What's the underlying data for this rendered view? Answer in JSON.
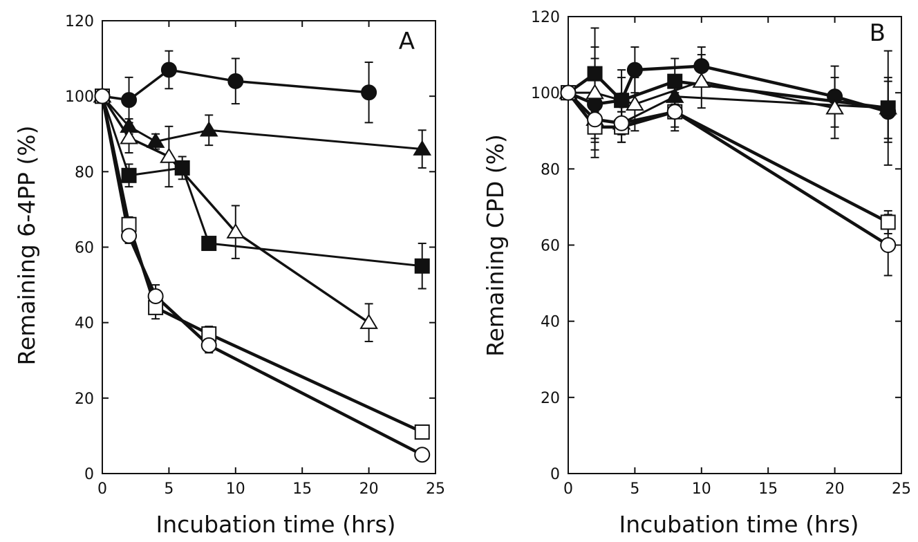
{
  "chart_data": [
    {
      "type": "line",
      "panel_label": "A",
      "xlabel": "Incubation time (hrs)",
      "ylabel": "Remaining 6-4PP (%)",
      "xlim": [
        0,
        25
      ],
      "ylim": [
        0,
        120
      ],
      "xticks": [
        "0",
        "5",
        "10",
        "15",
        "20",
        "25"
      ],
      "yticks": [
        "0",
        "20",
        "40",
        "60",
        "80",
        "100",
        "120"
      ],
      "grid": false,
      "legend": "none",
      "series": [
        {
          "marker": "filled-circle",
          "x": [
            0,
            2,
            5,
            10,
            20
          ],
          "y": [
            100,
            99,
            107,
            104,
            101
          ],
          "err": [
            0,
            6,
            5,
            6,
            8
          ]
        },
        {
          "marker": "filled-triangle",
          "x": [
            0,
            2,
            4,
            8,
            24
          ],
          "y": [
            100,
            92,
            88,
            91,
            86
          ],
          "err": [
            0,
            2,
            2,
            4,
            5
          ]
        },
        {
          "marker": "open-triangle",
          "x": [
            0,
            2,
            5,
            10,
            20
          ],
          "y": [
            100,
            89,
            84,
            64,
            40
          ],
          "err": [
            0,
            4,
            8,
            7,
            5
          ]
        },
        {
          "marker": "filled-square",
          "x": [
            0,
            2,
            6,
            8,
            24
          ],
          "y": [
            100,
            79,
            81,
            61,
            55
          ],
          "err": [
            0,
            3,
            3,
            0,
            6
          ]
        },
        {
          "marker": "open-square",
          "x": [
            0,
            2,
            4,
            8,
            24
          ],
          "y": [
            100,
            66,
            44,
            37,
            11
          ],
          "err": [
            0,
            2,
            3,
            2,
            0
          ]
        },
        {
          "marker": "open-circle",
          "x": [
            0,
            2,
            4,
            8,
            24
          ],
          "y": [
            100,
            63,
            47,
            34,
            5
          ],
          "err": [
            0,
            2,
            3,
            2,
            0
          ]
        }
      ]
    },
    {
      "type": "line",
      "panel_label": "B",
      "xlabel": "Incubation time (hrs)",
      "ylabel": "Remaining CPD (%)",
      "xlim": [
        0,
        25
      ],
      "ylim": [
        0,
        120
      ],
      "xticks": [
        "0",
        "5",
        "10",
        "15",
        "20",
        "25"
      ],
      "yticks": [
        "0",
        "20",
        "40",
        "60",
        "80",
        "100",
        "120"
      ],
      "grid": false,
      "legend": "none",
      "series": [
        {
          "marker": "filled-circle",
          "x": [
            0,
            2,
            4,
            5,
            10,
            20,
            24
          ],
          "y": [
            100,
            97,
            98,
            106,
            107,
            99,
            95
          ],
          "err": [
            0,
            12,
            8,
            6,
            5,
            8,
            8
          ]
        },
        {
          "marker": "filled-square",
          "x": [
            0,
            2,
            4,
            8,
            24
          ],
          "y": [
            100,
            105,
            98,
            103,
            96
          ],
          "err": [
            0,
            7,
            6,
            6,
            8
          ]
        },
        {
          "marker": "open-triangle",
          "x": [
            0,
            2,
            5,
            10,
            20
          ],
          "y": [
            100,
            100,
            97,
            103,
            96
          ],
          "err": [
            0,
            17,
            7,
            7,
            8
          ]
        },
        {
          "marker": "filled-triangle",
          "x": [
            0,
            2,
            4,
            8,
            24
          ],
          "y": [
            100,
            93,
            92,
            99,
            96
          ],
          "err": [
            0,
            5,
            5,
            4,
            15
          ]
        },
        {
          "marker": "open-square",
          "x": [
            0,
            2,
            4,
            8,
            24
          ],
          "y": [
            100,
            91,
            91,
            95,
            66
          ],
          "err": [
            0,
            4,
            4,
            5,
            3
          ]
        },
        {
          "marker": "open-circle",
          "x": [
            0,
            2,
            4,
            8,
            24
          ],
          "y": [
            100,
            93,
            92,
            95,
            60
          ],
          "err": [
            0,
            3,
            3,
            4,
            8
          ]
        }
      ]
    }
  ]
}
